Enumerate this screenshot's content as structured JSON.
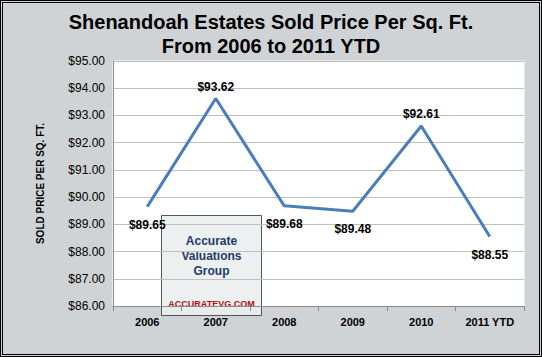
{
  "chart_data": {
    "type": "line",
    "title": "Shenandoah Estates Sold Price Per Sq. Ft.",
    "subtitle": "From 2006 to 2011 YTD",
    "y_label": "SOLD PRICE PER SQ. FT.",
    "annotations": [
      "Accurate Valuations Group",
      "ACCURATEVG.COM"
    ],
    "categories": [
      "2006",
      "2007",
      "2008",
      "2009",
      "2010",
      "2011 YTD"
    ],
    "values": [
      89.65,
      93.62,
      89.68,
      89.48,
      92.61,
      88.55
    ],
    "value_labels": [
      "$89.65",
      "$93.62",
      "$89.68",
      "$89.48",
      "$92.61",
      "$88.55"
    ],
    "color": "#4a7ebb",
    "data_labels": true,
    "grid": true,
    "ylim": [
      86,
      95
    ],
    "yticks": [
      {
        "value": 86,
        "label": "$86.00"
      },
      {
        "value": 87,
        "label": "$87.00"
      },
      {
        "value": 88,
        "label": "$88.00"
      },
      {
        "value": 89,
        "label": "$89.00"
      },
      {
        "value": 90,
        "label": "$90.00"
      },
      {
        "value": 91,
        "label": "$91.00"
      },
      {
        "value": 92,
        "label": "$92.00"
      },
      {
        "value": 93,
        "label": "$93.00"
      },
      {
        "value": 94,
        "label": "$94.00"
      },
      {
        "value": 95,
        "label": "$95.00"
      }
    ]
  }
}
